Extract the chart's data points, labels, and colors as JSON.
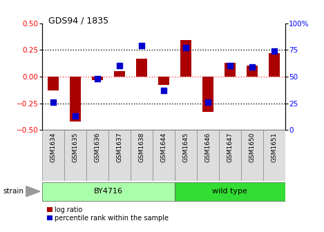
{
  "title": "GDS94 / 1835",
  "samples": [
    "GSM1634",
    "GSM1635",
    "GSM1636",
    "GSM1637",
    "GSM1638",
    "GSM1644",
    "GSM1645",
    "GSM1646",
    "GSM1647",
    "GSM1650",
    "GSM1651"
  ],
  "log_ratio": [
    -0.13,
    -0.42,
    -0.03,
    0.05,
    0.17,
    -0.08,
    0.34,
    -0.33,
    0.13,
    0.1,
    0.22
  ],
  "percentile_rank": [
    26,
    13,
    48,
    60,
    79,
    37,
    77,
    26,
    60,
    59,
    74
  ],
  "groups": [
    {
      "label": "BY4716",
      "n": 6,
      "color": "#AAFFAA"
    },
    {
      "label": "wild type",
      "n": 5,
      "color": "#33DD33"
    }
  ],
  "ylim_left": [
    -0.5,
    0.5
  ],
  "ylim_right": [
    0,
    100
  ],
  "yticks_left": [
    -0.5,
    -0.25,
    0.0,
    0.25,
    0.5
  ],
  "yticks_right": [
    0,
    25,
    50,
    75,
    100
  ],
  "bar_color": "#AA0000",
  "dot_color": "#0000CC",
  "hline_color": "#FF4444",
  "dotted_color": "black",
  "bg_color": "#FFFFFF",
  "plot_bg_color": "#FFFFFF",
  "strain_label": "strain",
  "legend_log_ratio": "log ratio",
  "legend_percentile": "percentile rank within the sample",
  "bar_width": 0.5,
  "dot_size": 28,
  "cell_color": "#DDDDDD"
}
